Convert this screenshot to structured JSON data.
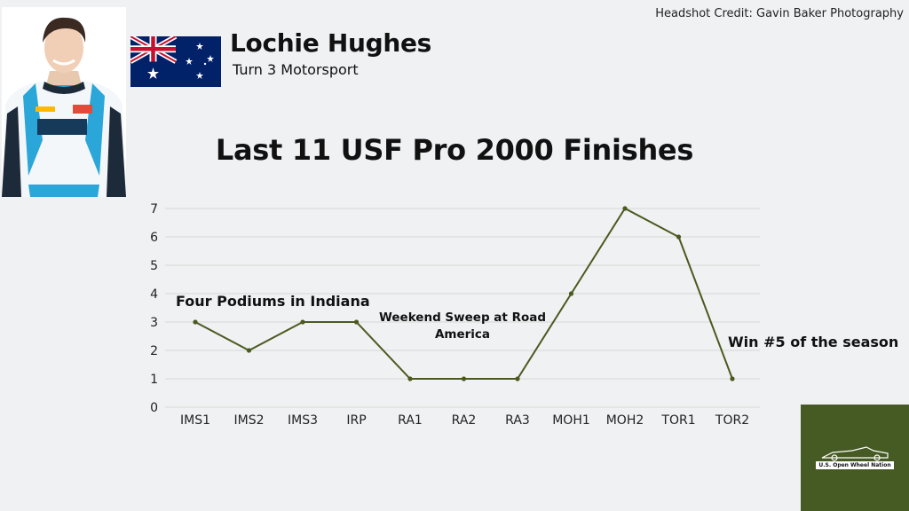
{
  "header": {
    "credit": "Headshot Credit: Gavin Baker Photography",
    "driver_name": "Lochie Hughes",
    "team_name": "Turn 3 Motorsport",
    "flag_icon": "australia-flag-icon",
    "headshot_icon": "driver-headshot-icon"
  },
  "colors": {
    "line": "#4a5a1f",
    "grid": "#d6d6d6",
    "logo_bg": "#465a23",
    "background": "#f0f1f3"
  },
  "annotations": {
    "indiana": "Four Podiums in Indiana",
    "road_america": "Weekend Sweep at Road America",
    "win": "Win #5 of the season"
  },
  "logo": {
    "text": "U.S. Open Wheel Nation",
    "icon": "race-car-icon"
  },
  "chart_data": {
    "type": "line",
    "title": "Last 11 USF Pro 2000 Finishes",
    "categories": [
      "IMS1",
      "IMS2",
      "IMS3",
      "IRP",
      "RA1",
      "RA2",
      "RA3",
      "MOH1",
      "MOH2",
      "TOR1",
      "TOR2"
    ],
    "values": [
      3,
      2,
      3,
      3,
      1,
      1,
      1,
      4,
      7,
      6,
      1
    ],
    "yticks": [
      "0",
      "1",
      "2",
      "3",
      "4",
      "5",
      "6",
      "7"
    ],
    "ylim": [
      0,
      7
    ],
    "grid": true,
    "legend": "none"
  }
}
